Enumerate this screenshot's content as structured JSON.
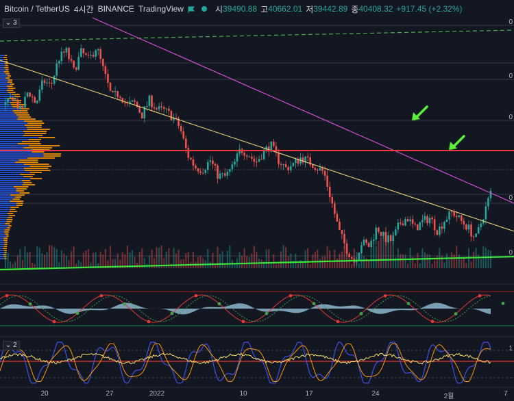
{
  "header": {
    "symbol": "Bitcoin / TetherUS",
    "interval": "4시간",
    "exchange": "BINANCE",
    "source": "TradingView",
    "open_label": "시",
    "open": "39490.88",
    "high_label": "고",
    "high": "40662.01",
    "low_label": "저",
    "low": "39442.89",
    "close_label": "종",
    "close": "40408.32",
    "change": "+917.45 (+2.32%)"
  },
  "pane_labels": {
    "main": "3",
    "osc2": "2"
  },
  "right_scale_labels": [
    "0",
    "0",
    "0",
    "0",
    "0",
    "1"
  ],
  "colors": {
    "background": "#131722",
    "up": "#26a69a",
    "down": "#ef5350",
    "trend_magenta": "#d34fd6",
    "trend_yellow": "#e6d47a",
    "support_green": "#39e639",
    "resistance_red": "#f23645",
    "dashed_green": "#4caf50",
    "arrow_green": "#5cf23a",
    "volume_profile_blue": "#2962ff",
    "volume_profile_orange": "#ff9800"
  },
  "chart_data": {
    "type": "candlestick",
    "timeframe": "4h",
    "x_tick_labels": [
      "20",
      "27",
      "2022",
      "10",
      "17",
      "24",
      "2월",
      "7"
    ],
    "price_path_close": [
      46800,
      47500,
      46300,
      47900,
      46900,
      48600,
      48200,
      50200,
      50800,
      49300,
      50700,
      50100,
      51100,
      49200,
      47400,
      47700,
      46800,
      47000,
      46100,
      47200,
      46500,
      46400,
      46000,
      45200,
      43200,
      42300,
      42100,
      42800,
      41700,
      41600,
      42300,
      43600,
      43300,
      42600,
      43400,
      43900,
      42800,
      42200,
      42500,
      43000,
      42700,
      42300,
      41900,
      39800,
      37600,
      36300,
      35400,
      36800,
      36500,
      37900,
      37100,
      36900,
      38200,
      38600,
      37800,
      38300,
      38600,
      37600,
      38500,
      39000,
      38400,
      37900,
      37000,
      38700,
      40400
    ],
    "horizontal_levels": [
      "resistance",
      "support"
    ],
    "indicators": [
      "volume",
      "oscillator",
      "stochastic"
    ]
  }
}
